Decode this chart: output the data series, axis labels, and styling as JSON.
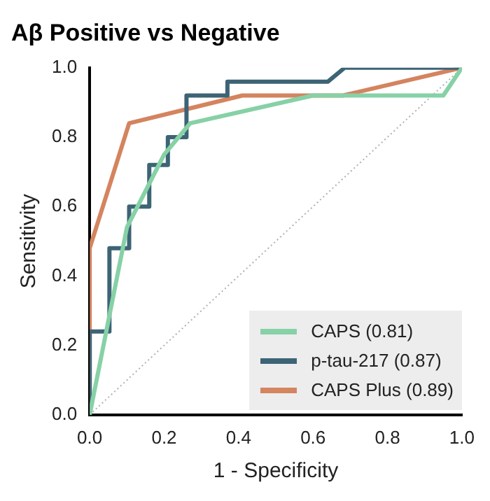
{
  "chart_data": {
    "type": "line",
    "title": "Aβ Positive vs Negative",
    "xlabel": "1 - Specificity",
    "ylabel": "Sensitivity",
    "xlim": [
      0,
      1
    ],
    "ylim": [
      0,
      1
    ],
    "xticks": [
      {
        "value": 0,
        "label": "0.0"
      },
      {
        "value": 0.2,
        "label": "0.2"
      },
      {
        "value": 0.4,
        "label": "0.4"
      },
      {
        "value": 0.6,
        "label": "0.6"
      },
      {
        "value": 0.8,
        "label": "0.8"
      },
      {
        "value": 1,
        "label": "1.0"
      }
    ],
    "yticks": [
      {
        "value": 0,
        "label": "0.0"
      },
      {
        "value": 0.2,
        "label": "0.2"
      },
      {
        "value": 0.4,
        "label": "0.4"
      },
      {
        "value": 0.6,
        "label": "0.6"
      },
      {
        "value": 0.8,
        "label": "0.8"
      },
      {
        "value": 1,
        "label": "1.0"
      }
    ],
    "grid": false,
    "legend": "bottom right",
    "marker": "none",
    "series": [
      {
        "name": "CAPS (0.81)",
        "color": "#86d1a6",
        "x": [
          0,
          0.1,
          0.2,
          0.27,
          0.6,
          0.95,
          1
        ],
        "values": [
          0,
          0.54,
          0.75,
          0.84,
          0.92,
          0.92,
          1
        ]
      },
      {
        "name": "p-tau-217 (0.87)",
        "color": "#3d6475",
        "x": [
          0,
          0,
          0.053,
          0.053,
          0.106,
          0.106,
          0.16,
          0.16,
          0.21,
          0.21,
          0.26,
          0.26,
          0.37,
          0.37,
          0.64,
          0.685,
          1
        ],
        "values": [
          0,
          0.24,
          0.24,
          0.48,
          0.48,
          0.6,
          0.6,
          0.72,
          0.72,
          0.8,
          0.8,
          0.92,
          0.92,
          0.96,
          0.96,
          1,
          1
        ]
      },
      {
        "name": "CAPS Plus (0.89)",
        "color": "#d4845f",
        "x": [
          0,
          0,
          0.106,
          0.41,
          0.68,
          1
        ],
        "values": [
          0,
          0.48,
          0.84,
          0.92,
          0.92,
          1
        ]
      },
      {
        "color": "#b0b0b0",
        "line_style": "dotted",
        "x": [
          0,
          1
        ],
        "values": [
          0,
          1
        ]
      }
    ]
  }
}
